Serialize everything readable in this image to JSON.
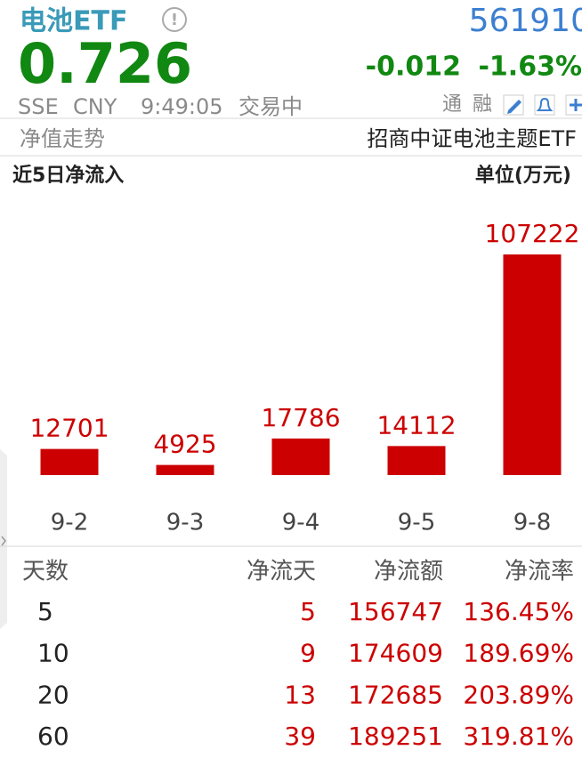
{
  "header": {
    "name": "电池ETF",
    "code": "561910",
    "price": "0.726",
    "change": "-0.012",
    "change_pct": "-1.63%",
    "market": "SSE",
    "currency": "CNY",
    "time": "9:49:05",
    "status": "交易中",
    "buttons": [
      "通",
      "融"
    ]
  },
  "tabs": {
    "left": "净值走势",
    "right": "招商中证电池主题ETF"
  },
  "chart_data": {
    "type": "bar",
    "title": "近5日净流入",
    "unit": "单位(万元)",
    "categories": [
      "9-2",
      "9-3",
      "9-4",
      "9-5",
      "9-8"
    ],
    "values": [
      12701,
      4925,
      17786,
      14112,
      107222
    ],
    "color": "#cc0000"
  },
  "table": {
    "header": [
      "天数",
      "净流天",
      "净流额",
      "净流率"
    ],
    "rows": [
      [
        "5",
        "5",
        "156747",
        "136.45%"
      ],
      [
        "10",
        "9",
        "174609",
        "189.69%"
      ],
      [
        "20",
        "13",
        "172685",
        "203.89%"
      ],
      [
        "60",
        "39",
        "189251",
        "319.81%"
      ]
    ]
  }
}
